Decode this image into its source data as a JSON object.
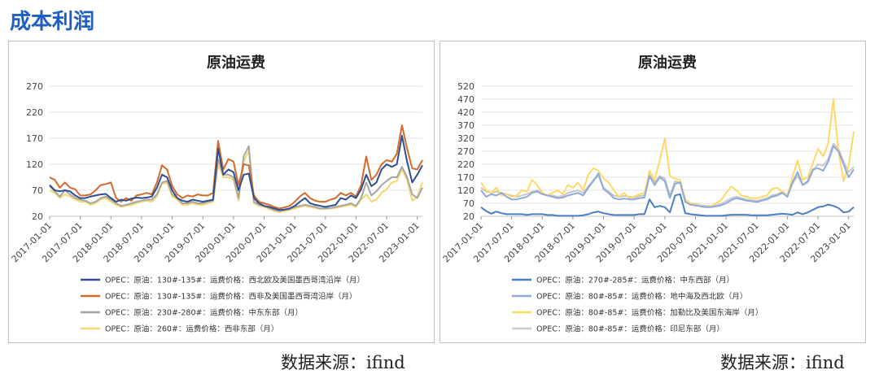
{
  "section_title": "成本利润",
  "source_label": "数据来源：ifind",
  "chart_data": [
    {
      "type": "line",
      "title": "原油运费",
      "xlabel": "",
      "ylabel": "",
      "ylim": [
        20,
        270
      ],
      "yticks": [
        20,
        70,
        120,
        170,
        220,
        270
      ],
      "x_start": "2017-01",
      "x_tick_labels": [
        "2017-01-01",
        "2017-07-01",
        "2018-01-01",
        "2018-07-01",
        "2019-01-01",
        "2019-07-01",
        "2020-01-01",
        "2020-07-01",
        "2021-01-01",
        "2021-07-01",
        "2022-01-01",
        "2022-07-01",
        "2023-01-01"
      ],
      "legend_position": "bottom",
      "series": [
        {
          "name": "OPEC：原油：130#-135#：运费价格：西北欧及美国墨西哥湾沿岸（月）",
          "color": "#2e4f8f",
          "values": [
            80,
            70,
            68,
            70,
            68,
            60,
            55,
            55,
            58,
            60,
            62,
            63,
            55,
            48,
            52,
            50,
            54,
            56,
            55,
            56,
            58,
            75,
            100,
            95,
            70,
            55,
            50,
            48,
            52,
            50,
            48,
            50,
            52,
            150,
            100,
            110,
            105,
            70,
            100,
            102,
            55,
            45,
            40,
            38,
            35,
            32,
            33,
            35,
            40,
            48,
            55,
            45,
            42,
            40,
            38,
            40,
            42,
            55,
            52,
            60,
            55,
            72,
            100,
            78,
            85,
            110,
            120,
            115,
            120,
            175,
            125,
            85,
            100,
            118
          ]
        },
        {
          "name": "OPEC：原油：130#-135#：运费价格：西非及美国墨西哥湾沿岸（月）",
          "color": "#d46a2a",
          "values": [
            95,
            90,
            75,
            85,
            75,
            72,
            60,
            60,
            62,
            70,
            80,
            82,
            85,
            55,
            48,
            55,
            50,
            60,
            62,
            65,
            62,
            85,
            118,
            110,
            78,
            62,
            55,
            60,
            58,
            62,
            60,
            60,
            65,
            165,
            110,
            130,
            125,
            80,
            120,
            118,
            60,
            48,
            45,
            42,
            38,
            35,
            37,
            40,
            48,
            58,
            65,
            55,
            50,
            48,
            48,
            52,
            55,
            65,
            60,
            65,
            58,
            80,
            135,
            90,
            100,
            120,
            128,
            125,
            140,
            195,
            150,
            112,
            110,
            128
          ]
        },
        {
          "name": "OPEC：原油：230#-280#：运费价格：中东东部（月）",
          "color": "#a6a6a6",
          "values": [
            78,
            68,
            58,
            70,
            62,
            55,
            52,
            50,
            45,
            48,
            55,
            58,
            52,
            45,
            40,
            42,
            45,
            48,
            50,
            52,
            52,
            62,
            85,
            88,
            62,
            55,
            45,
            45,
            48,
            45,
            45,
            48,
            50,
            130,
            100,
            100,
            95,
            55,
            135,
            155,
            48,
            42,
            40,
            36,
            32,
            30,
            32,
            34,
            38,
            40,
            42,
            40,
            38,
            35,
            35,
            36,
            38,
            40,
            42,
            45,
            40,
            55,
            85,
            60,
            68,
            80,
            88,
            95,
            95,
            115,
            95,
            62,
            55,
            75
          ]
        },
        {
          "name": "OPEC：原油：260#：运费价格：西非东部（月）",
          "color": "#f5d76e",
          "values": [
            70,
            65,
            55,
            62,
            58,
            52,
            48,
            48,
            42,
            45,
            52,
            55,
            48,
            42,
            38,
            40,
            42,
            45,
            48,
            50,
            48,
            58,
            82,
            85,
            58,
            52,
            42,
            42,
            45,
            42,
            42,
            45,
            48,
            120,
            95,
            95,
            90,
            50,
            125,
            145,
            45,
            40,
            38,
            34,
            30,
            28,
            30,
            32,
            35,
            38,
            40,
            38,
            36,
            34,
            34,
            35,
            36,
            38,
            40,
            42,
            38,
            52,
            62,
            48,
            52,
            65,
            72,
            85,
            88,
            110,
            90,
            50,
            58,
            85
          ]
        }
      ]
    },
    {
      "type": "line",
      "title": "原油运费",
      "xlabel": "",
      "ylabel": "",
      "ylim": [
        20,
        520
      ],
      "yticks": [
        20,
        70,
        120,
        170,
        220,
        270,
        320,
        370,
        420,
        470,
        520
      ],
      "x_start": "2017-01",
      "x_tick_labels": [
        "2017-01-01",
        "2017-07-01",
        "2018-01-01",
        "2018-07-01",
        "2019-01-01",
        "2019-07-01",
        "2020-01-01",
        "2020-07-01",
        "2021-01-01",
        "2021-07-01",
        "2022-01-01",
        "2022-07-01",
        "2023-01-01"
      ],
      "legend_position": "bottom",
      "series": [
        {
          "name": "OPEC：原油：270#-285#：运费价格：中东西部（月）",
          "color": "#4a7fc1",
          "values": [
            55,
            40,
            30,
            38,
            32,
            28,
            28,
            28,
            28,
            25,
            28,
            28,
            28,
            25,
            25,
            22,
            22,
            22,
            22,
            22,
            24,
            28,
            35,
            38,
            32,
            28,
            25,
            25,
            25,
            25,
            25,
            28,
            28,
            85,
            55,
            60,
            55,
            35,
            100,
            105,
            32,
            28,
            26,
            24,
            22,
            22,
            22,
            22,
            24,
            26,
            26,
            26,
            26,
            24,
            24,
            24,
            24,
            26,
            28,
            30,
            28,
            26,
            35,
            28,
            35,
            45,
            55,
            58,
            65,
            60,
            52,
            35,
            38,
            55
          ]
        },
        {
          "name": "OPEC：原油：80#-85#：运费价格：地中海及西北欧（月）",
          "color": "#8ea9db",
          "values": [
            120,
            95,
            105,
            100,
            110,
            95,
            85,
            85,
            90,
            95,
            110,
            115,
            105,
            100,
            95,
            90,
            92,
            100,
            105,
            110,
            100,
            130,
            155,
            185,
            125,
            110,
            90,
            85,
            88,
            85,
            85,
            90,
            92,
            175,
            140,
            170,
            155,
            90,
            145,
            150,
            75,
            65,
            62,
            58,
            55,
            55,
            58,
            62,
            70,
            82,
            90,
            85,
            80,
            78,
            75,
            80,
            85,
            95,
            100,
            110,
            95,
            150,
            190,
            140,
            155,
            200,
            205,
            195,
            230,
            290,
            270,
            220,
            170,
            200
          ]
        },
        {
          "name": "OPEC：原油：80#-85#：运费价格：加勒比及美国东海岸（月）",
          "color": "#ffd966",
          "values": [
            150,
            120,
            110,
            130,
            100,
            105,
            95,
            100,
            120,
            115,
            160,
            140,
            110,
            100,
            110,
            120,
            105,
            140,
            130,
            150,
            120,
            180,
            205,
            195,
            165,
            150,
            120,
            95,
            110,
            90,
            95,
            105,
            110,
            195,
            160,
            235,
            320,
            175,
            165,
            160,
            85,
            70,
            65,
            60,
            55,
            58,
            70,
            82,
            110,
            135,
            120,
            100,
            95,
            90,
            90,
            95,
            100,
            125,
            130,
            115,
            100,
            170,
            235,
            160,
            170,
            225,
            280,
            250,
            300,
            470,
            270,
            155,
            215,
            345
          ]
        },
        {
          "name": "OPEC：原油：80#-85#：运费价格：印尼东部（月）",
          "color": "#c9c9c9",
          "values": [
            130,
            115,
            110,
            115,
            110,
            105,
            100,
            95,
            100,
            105,
            115,
            120,
            110,
            100,
            100,
            95,
            98,
            110,
            115,
            120,
            110,
            135,
            160,
            175,
            130,
            115,
            100,
            95,
            98,
            95,
            92,
            98,
            100,
            180,
            150,
            175,
            165,
            100,
            155,
            150,
            80,
            70,
            68,
            62,
            60,
            60,
            62,
            68,
            78,
            90,
            95,
            90,
            85,
            82,
            80,
            85,
            90,
            100,
            105,
            115,
            100,
            145,
            175,
            140,
            150,
            195,
            220,
            215,
            240,
            300,
            280,
            230,
            190,
            210
          ]
        }
      ]
    }
  ]
}
